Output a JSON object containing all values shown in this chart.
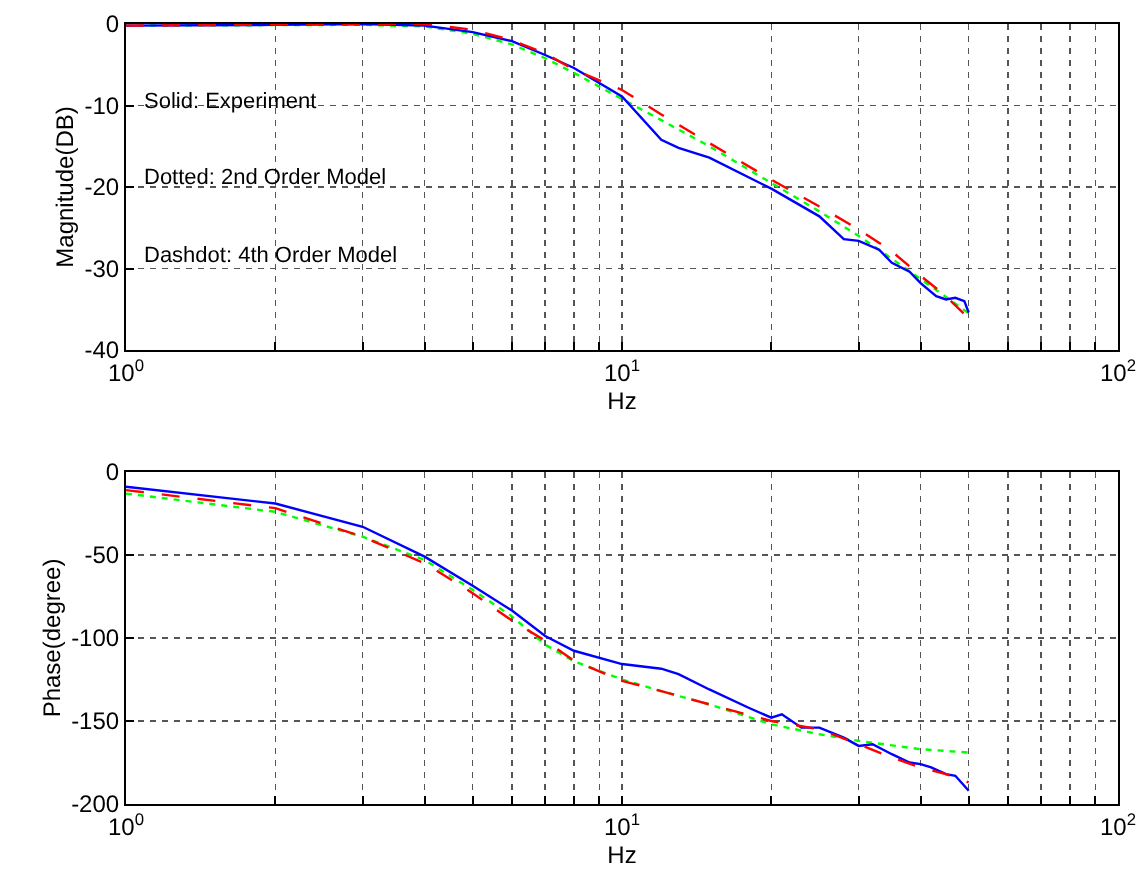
{
  "chart_data": [
    {
      "type": "line",
      "xlabel": "Hz",
      "ylabel": "Magnitude(DB)",
      "log": "x",
      "grid": true,
      "xlim": [
        1,
        100
      ],
      "ylim": [
        -40,
        0
      ],
      "xticks": [
        {
          "value": 1,
          "label": "10$^{0}$"
        },
        {
          "value": 2,
          "label": null
        },
        {
          "value": 3,
          "label": null
        },
        {
          "value": 4,
          "label": null
        },
        {
          "value": 5,
          "label": null
        },
        {
          "value": 6,
          "label": null
        },
        {
          "value": 7,
          "label": null
        },
        {
          "value": 8,
          "label": null
        },
        {
          "value": 9,
          "label": null
        },
        {
          "value": 10,
          "label": "10$^{1}$"
        },
        {
          "value": 20,
          "label": null
        },
        {
          "value": 30,
          "label": null
        },
        {
          "value": 40,
          "label": null
        },
        {
          "value": 50,
          "label": null
        },
        {
          "value": 60,
          "label": null
        },
        {
          "value": 70,
          "label": null
        },
        {
          "value": 80,
          "label": null
        },
        {
          "value": 90,
          "label": null
        },
        {
          "value": 100,
          "label": "10$^{2}$"
        }
      ],
      "yticks": [
        -40,
        -30,
        -20,
        -10,
        0
      ],
      "annotations": [
        "Solid: Experiment",
        "Dotted: 2nd Order Model",
        "Dashdot: 4th Order Model"
      ],
      "series": [
        {
          "color": "#00ff00",
          "line_style": "dotted",
          "x": [
            1,
            3,
            4,
            5,
            6,
            7,
            8,
            10,
            12,
            15,
            20,
            25,
            30,
            35,
            40,
            45,
            50
          ],
          "values": [
            -0.2,
            -0.1,
            -0.3,
            -1.2,
            -2.5,
            -4.2,
            -6,
            -9.2,
            -11.8,
            -15,
            -19.5,
            -23,
            -26,
            -28.8,
            -31.3,
            -33.5,
            -35.5
          ]
        },
        {
          "color": "#0000ff",
          "line_style": "solid",
          "x": [
            1,
            2,
            3,
            4,
            5,
            6,
            7,
            8,
            10,
            12,
            13,
            15,
            20,
            25,
            28,
            30,
            33,
            35,
            38,
            40,
            43,
            45,
            47,
            49,
            50
          ],
          "values": [
            -0.2,
            -0.1,
            0,
            -0.2,
            -1,
            -2.1,
            -3.8,
            -5.4,
            -8.9,
            -14.2,
            -15.2,
            -16.4,
            -20.2,
            -23.6,
            -26.4,
            -26.6,
            -27.7,
            -29.3,
            -30.4,
            -31.8,
            -33.4,
            -33.8,
            -33.6,
            -34,
            -35.4
          ]
        },
        {
          "color": "#ff0000",
          "line_style": "dashed",
          "x": [
            1,
            3,
            4,
            5,
            6,
            7,
            8,
            10,
            12,
            15,
            20,
            25,
            30,
            35,
            40,
            45,
            50
          ],
          "values": [
            -0.2,
            0,
            0,
            -0.7,
            -2,
            -3.6,
            -5.6,
            -8.1,
            -11.1,
            -14.6,
            -19.1,
            -22.4,
            -25.2,
            -27.9,
            -30.9,
            -33.4,
            -36.1
          ]
        }
      ]
    },
    {
      "type": "line",
      "xlabel": "Hz",
      "ylabel": "Phase(degree)",
      "log": "x",
      "grid": true,
      "xlim": [
        1,
        100
      ],
      "ylim": [
        -200,
        0
      ],
      "xticks": [
        {
          "value": 1,
          "label": "10$^{0}$"
        },
        {
          "value": 2,
          "label": null
        },
        {
          "value": 3,
          "label": null
        },
        {
          "value": 4,
          "label": null
        },
        {
          "value": 5,
          "label": null
        },
        {
          "value": 6,
          "label": null
        },
        {
          "value": 7,
          "label": null
        },
        {
          "value": 8,
          "label": null
        },
        {
          "value": 9,
          "label": null
        },
        {
          "value": 10,
          "label": "10$^{1}$"
        },
        {
          "value": 20,
          "label": null
        },
        {
          "value": 30,
          "label": null
        },
        {
          "value": 40,
          "label": null
        },
        {
          "value": 50,
          "label": null
        },
        {
          "value": 60,
          "label": null
        },
        {
          "value": 70,
          "label": null
        },
        {
          "value": 80,
          "label": null
        },
        {
          "value": 90,
          "label": null
        },
        {
          "value": 100,
          "label": "10$^{2}$"
        }
      ],
      "yticks": [
        -200,
        -150,
        -100,
        -50,
        0
      ],
      "series": [
        {
          "color": "#00ff00",
          "line_style": "dotted",
          "x": [
            1,
            2,
            3,
            4,
            5,
            6,
            7,
            8,
            10,
            12,
            15,
            20,
            25,
            30,
            40,
            50
          ],
          "values": [
            -13,
            -24,
            -39,
            -53,
            -71,
            -87,
            -104,
            -114,
            -125,
            -132,
            -140,
            -152,
            -158,
            -162,
            -167,
            -169
          ]
        },
        {
          "color": "#0000ff",
          "line_style": "solid",
          "x": [
            1,
            2,
            3,
            4,
            5,
            6,
            7,
            8,
            10,
            12,
            13,
            15,
            18,
            20,
            21,
            23,
            25,
            28,
            30,
            32,
            35,
            38,
            40,
            42,
            45,
            47,
            50
          ],
          "values": [
            -8.9,
            -19,
            -33,
            -51,
            -68.5,
            -83.5,
            -98.8,
            -107.7,
            -115.7,
            -118.5,
            -121.8,
            -131,
            -142,
            -148,
            -146,
            -154,
            -154,
            -160,
            -165,
            -164,
            -170,
            -175,
            -176,
            -178,
            -182,
            -183,
            -192
          ]
        },
        {
          "color": "#ff0000",
          "line_style": "dashed",
          "x": [
            1,
            2,
            3,
            4,
            5,
            6,
            7,
            8,
            10,
            12,
            15,
            20,
            25,
            30,
            35,
            40,
            45,
            50
          ],
          "values": [
            -10.9,
            -21.8,
            -39,
            -55,
            -73,
            -89.5,
            -101.6,
            -113.7,
            -125.8,
            -132,
            -140,
            -150,
            -155,
            -164,
            -172,
            -178,
            -182,
            -187
          ]
        }
      ]
    }
  ]
}
